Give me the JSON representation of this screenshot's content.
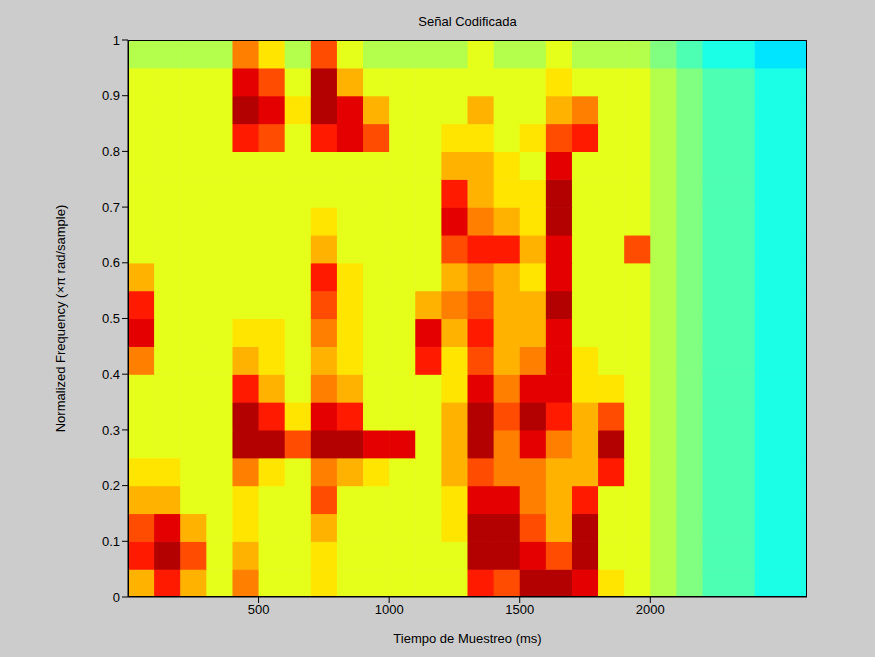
{
  "chart_data": {
    "type": "heatmap",
    "title": "Señal Codificada",
    "x_label": "Tiempo de Muestreo (ms)",
    "y_label": "Normalized Frequency  (×π rad/sample)",
    "x": [
      50,
      150,
      250,
      350,
      450,
      550,
      650,
      750,
      850,
      950,
      1050,
      1150,
      1250,
      1350,
      1450,
      1550,
      1650,
      1750,
      1850,
      1950,
      2050,
      2150,
      2250,
      2350,
      2450,
      2550
    ],
    "y": [
      0.025,
      0.075,
      0.125,
      0.175,
      0.225,
      0.275,
      0.325,
      0.375,
      0.425,
      0.475,
      0.525,
      0.575,
      0.625,
      0.675,
      0.725,
      0.775,
      0.825,
      0.875,
      0.925,
      0.975
    ],
    "cells": [
      [
        0.7,
        0.85,
        0.7,
        0.6,
        0.75,
        0.6,
        0.6,
        0.65,
        0.6,
        0.6,
        0.6,
        0.6,
        0.6,
        0.85,
        0.8,
        0.95,
        0.95,
        0.9,
        0.65,
        0.6,
        0.55,
        0.5,
        0.45,
        0.45,
        0.4,
        0.4
      ],
      [
        0.85,
        0.95,
        0.8,
        0.6,
        0.7,
        0.6,
        0.6,
        0.65,
        0.6,
        0.6,
        0.6,
        0.6,
        0.6,
        0.95,
        0.95,
        0.9,
        0.8,
        0.95,
        0.6,
        0.6,
        0.55,
        0.5,
        0.45,
        0.45,
        0.4,
        0.4
      ],
      [
        0.8,
        0.9,
        0.7,
        0.6,
        0.65,
        0.6,
        0.6,
        0.7,
        0.6,
        0.6,
        0.6,
        0.6,
        0.65,
        0.95,
        0.95,
        0.8,
        0.7,
        0.95,
        0.6,
        0.6,
        0.55,
        0.5,
        0.45,
        0.45,
        0.4,
        0.4
      ],
      [
        0.7,
        0.7,
        0.6,
        0.6,
        0.65,
        0.6,
        0.6,
        0.8,
        0.6,
        0.6,
        0.6,
        0.6,
        0.65,
        0.9,
        0.9,
        0.75,
        0.7,
        0.85,
        0.6,
        0.6,
        0.55,
        0.5,
        0.45,
        0.45,
        0.4,
        0.4
      ],
      [
        0.65,
        0.65,
        0.6,
        0.6,
        0.75,
        0.65,
        0.6,
        0.75,
        0.7,
        0.65,
        0.6,
        0.6,
        0.7,
        0.8,
        0.75,
        0.75,
        0.7,
        0.7,
        0.85,
        0.6,
        0.55,
        0.5,
        0.45,
        0.45,
        0.4,
        0.4
      ],
      [
        0.6,
        0.6,
        0.6,
        0.6,
        0.95,
        0.95,
        0.8,
        0.95,
        0.95,
        0.9,
        0.9,
        0.6,
        0.7,
        0.95,
        0.75,
        0.9,
        0.75,
        0.7,
        0.95,
        0.6,
        0.55,
        0.5,
        0.45,
        0.45,
        0.4,
        0.4
      ],
      [
        0.6,
        0.6,
        0.6,
        0.6,
        0.95,
        0.85,
        0.65,
        0.9,
        0.85,
        0.6,
        0.6,
        0.6,
        0.7,
        0.95,
        0.8,
        0.95,
        0.85,
        0.7,
        0.8,
        0.6,
        0.55,
        0.5,
        0.45,
        0.45,
        0.4,
        0.4
      ],
      [
        0.6,
        0.6,
        0.6,
        0.6,
        0.85,
        0.7,
        0.6,
        0.75,
        0.7,
        0.6,
        0.6,
        0.6,
        0.65,
        0.9,
        0.75,
        0.9,
        0.9,
        0.65,
        0.65,
        0.6,
        0.55,
        0.5,
        0.45,
        0.45,
        0.4,
        0.4
      ],
      [
        0.75,
        0.6,
        0.6,
        0.6,
        0.7,
        0.65,
        0.6,
        0.7,
        0.65,
        0.6,
        0.6,
        0.85,
        0.65,
        0.8,
        0.7,
        0.75,
        0.9,
        0.65,
        0.6,
        0.6,
        0.55,
        0.5,
        0.45,
        0.45,
        0.4,
        0.4
      ],
      [
        0.9,
        0.6,
        0.6,
        0.6,
        0.65,
        0.65,
        0.6,
        0.75,
        0.65,
        0.6,
        0.6,
        0.9,
        0.7,
        0.85,
        0.7,
        0.7,
        0.9,
        0.6,
        0.6,
        0.6,
        0.55,
        0.5,
        0.45,
        0.45,
        0.4,
        0.4
      ],
      [
        0.85,
        0.6,
        0.6,
        0.6,
        0.6,
        0.6,
        0.6,
        0.8,
        0.65,
        0.6,
        0.6,
        0.7,
        0.75,
        0.8,
        0.7,
        0.7,
        0.95,
        0.6,
        0.6,
        0.6,
        0.55,
        0.5,
        0.45,
        0.45,
        0.4,
        0.4
      ],
      [
        0.7,
        0.6,
        0.6,
        0.6,
        0.6,
        0.6,
        0.6,
        0.85,
        0.65,
        0.6,
        0.6,
        0.6,
        0.7,
        0.75,
        0.7,
        0.65,
        0.9,
        0.6,
        0.6,
        0.6,
        0.55,
        0.5,
        0.45,
        0.45,
        0.4,
        0.4
      ],
      [
        0.6,
        0.6,
        0.6,
        0.6,
        0.6,
        0.6,
        0.6,
        0.7,
        0.6,
        0.6,
        0.6,
        0.6,
        0.8,
        0.85,
        0.85,
        0.7,
        0.9,
        0.6,
        0.6,
        0.8,
        0.55,
        0.5,
        0.45,
        0.45,
        0.4,
        0.4
      ],
      [
        0.6,
        0.6,
        0.6,
        0.6,
        0.6,
        0.6,
        0.6,
        0.65,
        0.6,
        0.6,
        0.6,
        0.6,
        0.9,
        0.75,
        0.7,
        0.65,
        0.95,
        0.6,
        0.6,
        0.6,
        0.55,
        0.5,
        0.45,
        0.45,
        0.4,
        0.4
      ],
      [
        0.6,
        0.6,
        0.6,
        0.6,
        0.6,
        0.6,
        0.6,
        0.6,
        0.6,
        0.6,
        0.6,
        0.6,
        0.85,
        0.7,
        0.65,
        0.65,
        0.95,
        0.6,
        0.6,
        0.6,
        0.55,
        0.5,
        0.45,
        0.45,
        0.4,
        0.4
      ],
      [
        0.6,
        0.6,
        0.6,
        0.6,
        0.6,
        0.6,
        0.6,
        0.6,
        0.6,
        0.6,
        0.6,
        0.6,
        0.7,
        0.7,
        0.65,
        0.6,
        0.9,
        0.6,
        0.6,
        0.6,
        0.55,
        0.5,
        0.45,
        0.45,
        0.4,
        0.4
      ],
      [
        0.6,
        0.6,
        0.6,
        0.6,
        0.85,
        0.8,
        0.6,
        0.85,
        0.9,
        0.8,
        0.6,
        0.6,
        0.65,
        0.65,
        0.6,
        0.65,
        0.8,
        0.85,
        0.6,
        0.6,
        0.55,
        0.5,
        0.45,
        0.45,
        0.4,
        0.4
      ],
      [
        0.6,
        0.6,
        0.6,
        0.6,
        0.95,
        0.9,
        0.65,
        0.95,
        0.9,
        0.7,
        0.6,
        0.6,
        0.6,
        0.7,
        0.6,
        0.6,
        0.7,
        0.75,
        0.6,
        0.6,
        0.55,
        0.5,
        0.45,
        0.45,
        0.4,
        0.4
      ],
      [
        0.6,
        0.6,
        0.6,
        0.6,
        0.9,
        0.8,
        0.6,
        0.95,
        0.7,
        0.6,
        0.6,
        0.6,
        0.6,
        0.6,
        0.6,
        0.6,
        0.65,
        0.6,
        0.6,
        0.6,
        0.55,
        0.5,
        0.45,
        0.45,
        0.4,
        0.4
      ],
      [
        0.55,
        0.55,
        0.55,
        0.55,
        0.75,
        0.65,
        0.55,
        0.8,
        0.6,
        0.55,
        0.55,
        0.55,
        0.55,
        0.6,
        0.55,
        0.55,
        0.6,
        0.55,
        0.55,
        0.55,
        0.5,
        0.45,
        0.4,
        0.4,
        0.35,
        0.35
      ]
    ],
    "xlim": [
      0,
      2600
    ],
    "xticks": [
      500,
      1000,
      1500,
      2000
    ],
    "ylim": [
      0,
      1
    ],
    "yticks": [
      0,
      0.1,
      0.2,
      0.3,
      0.4,
      0.5,
      0.6,
      0.7,
      0.8,
      0.9,
      1
    ]
  }
}
